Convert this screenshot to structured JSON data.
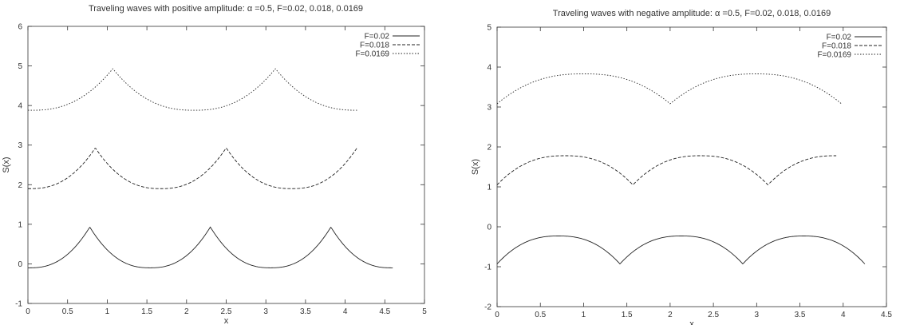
{
  "chart_data": [
    {
      "type": "line",
      "title": "Traveling waves with positive amplitude: α =0.5, F=0.02, 0.018, 0.0169",
      "xlabel": "x",
      "ylabel": "S(x)",
      "xlim": [
        0,
        5
      ],
      "ylim": [
        -1,
        6
      ],
      "xticks": [
        0,
        0.5,
        1,
        1.5,
        2,
        2.5,
        3,
        3.5,
        4,
        4.5,
        5
      ],
      "xtick_labels": [
        "0",
        "0.5",
        "1",
        "1.5",
        "2",
        "2.5",
        "3",
        "3.5",
        "4",
        "4.5",
        "5"
      ],
      "yticks": [
        -1,
        0,
        1,
        2,
        3,
        4,
        5,
        6
      ],
      "ytick_labels": [
        "-1",
        "0",
        "1",
        "2",
        "3",
        "4",
        "5",
        "6"
      ],
      "grid": false,
      "legend_position": "top-right",
      "series": [
        {
          "name": "F=0.02",
          "style": "solid",
          "x": [
            0,
            0.78,
            2.3,
            3.82,
            4.6
          ],
          "y": [
            -0.1,
            0.93,
            -0.1,
            0.93,
            -0.1
          ],
          "peaks": [
            0.78,
            2.3,
            3.82
          ],
          "base": -0.1,
          "height": 1.03,
          "period": 1.52
        },
        {
          "name": "F=0.018",
          "style": "dashed",
          "x": [
            0,
            0.85,
            2.5,
            4.15
          ],
          "y": [
            1.9,
            2.93,
            1.9,
            2.93
          ],
          "peaks": [
            0.85,
            2.5,
            4.15
          ],
          "base": 1.9,
          "height": 1.03,
          "period": 1.65
        },
        {
          "name": "F=0.0169",
          "style": "dotted",
          "x": [
            0,
            1.07,
            3.12,
            4.15
          ],
          "y": [
            3.88,
            4.93,
            3.88,
            3.88
          ],
          "peaks": [
            1.07,
            3.12
          ],
          "base": 3.88,
          "height": 1.05,
          "period": 2.05
        }
      ]
    },
    {
      "type": "line",
      "title": "Traveling waves with negative amplitude: α =0.5, F=0.02, 0.018, 0.0169",
      "xlabel": "x",
      "ylabel": "S(x)",
      "xlim": [
        0,
        4.5
      ],
      "ylim": [
        -2,
        5
      ],
      "xticks": [
        0,
        0.5,
        1,
        1.5,
        2,
        2.5,
        3,
        3.5,
        4,
        4.5
      ],
      "xtick_labels": [
        "0",
        "0.5",
        "1",
        "1.5",
        "2",
        "2.5",
        "3",
        "3.5",
        "4",
        "4.5"
      ],
      "yticks": [
        -2,
        -1,
        0,
        1,
        2,
        3,
        4,
        5
      ],
      "ytick_labels": [
        "-2",
        "-1",
        "0",
        "1",
        "2",
        "3",
        "4",
        "5"
      ],
      "grid": false,
      "legend_position": "top-right",
      "series": [
        {
          "name": "F=0.02",
          "style": "solid",
          "x": [
            0,
            1.42,
            2.84,
            4.25
          ],
          "y": [
            -0.93,
            -0.93,
            -0.93,
            -0.93
          ],
          "troughs": [
            0,
            1.42,
            2.84,
            4.25
          ],
          "top": -0.23,
          "depth": 0.7,
          "period": 1.42
        },
        {
          "name": "F=0.018",
          "style": "dashed",
          "x": [
            0,
            1.57,
            3.13,
            3.92
          ],
          "y": [
            1.05,
            1.05,
            1.05,
            1.78
          ],
          "troughs": [
            0,
            1.57,
            3.13
          ],
          "top": 1.78,
          "depth": 0.73,
          "period": 1.56
        },
        {
          "name": "F=0.0169",
          "style": "dotted",
          "x": [
            0,
            2.0,
            3.98
          ],
          "y": [
            3.08,
            3.08,
            3.08
          ],
          "troughs": [
            0,
            2.0,
            3.98
          ],
          "top": 3.83,
          "depth": 0.75,
          "period": 1.99
        }
      ]
    }
  ]
}
